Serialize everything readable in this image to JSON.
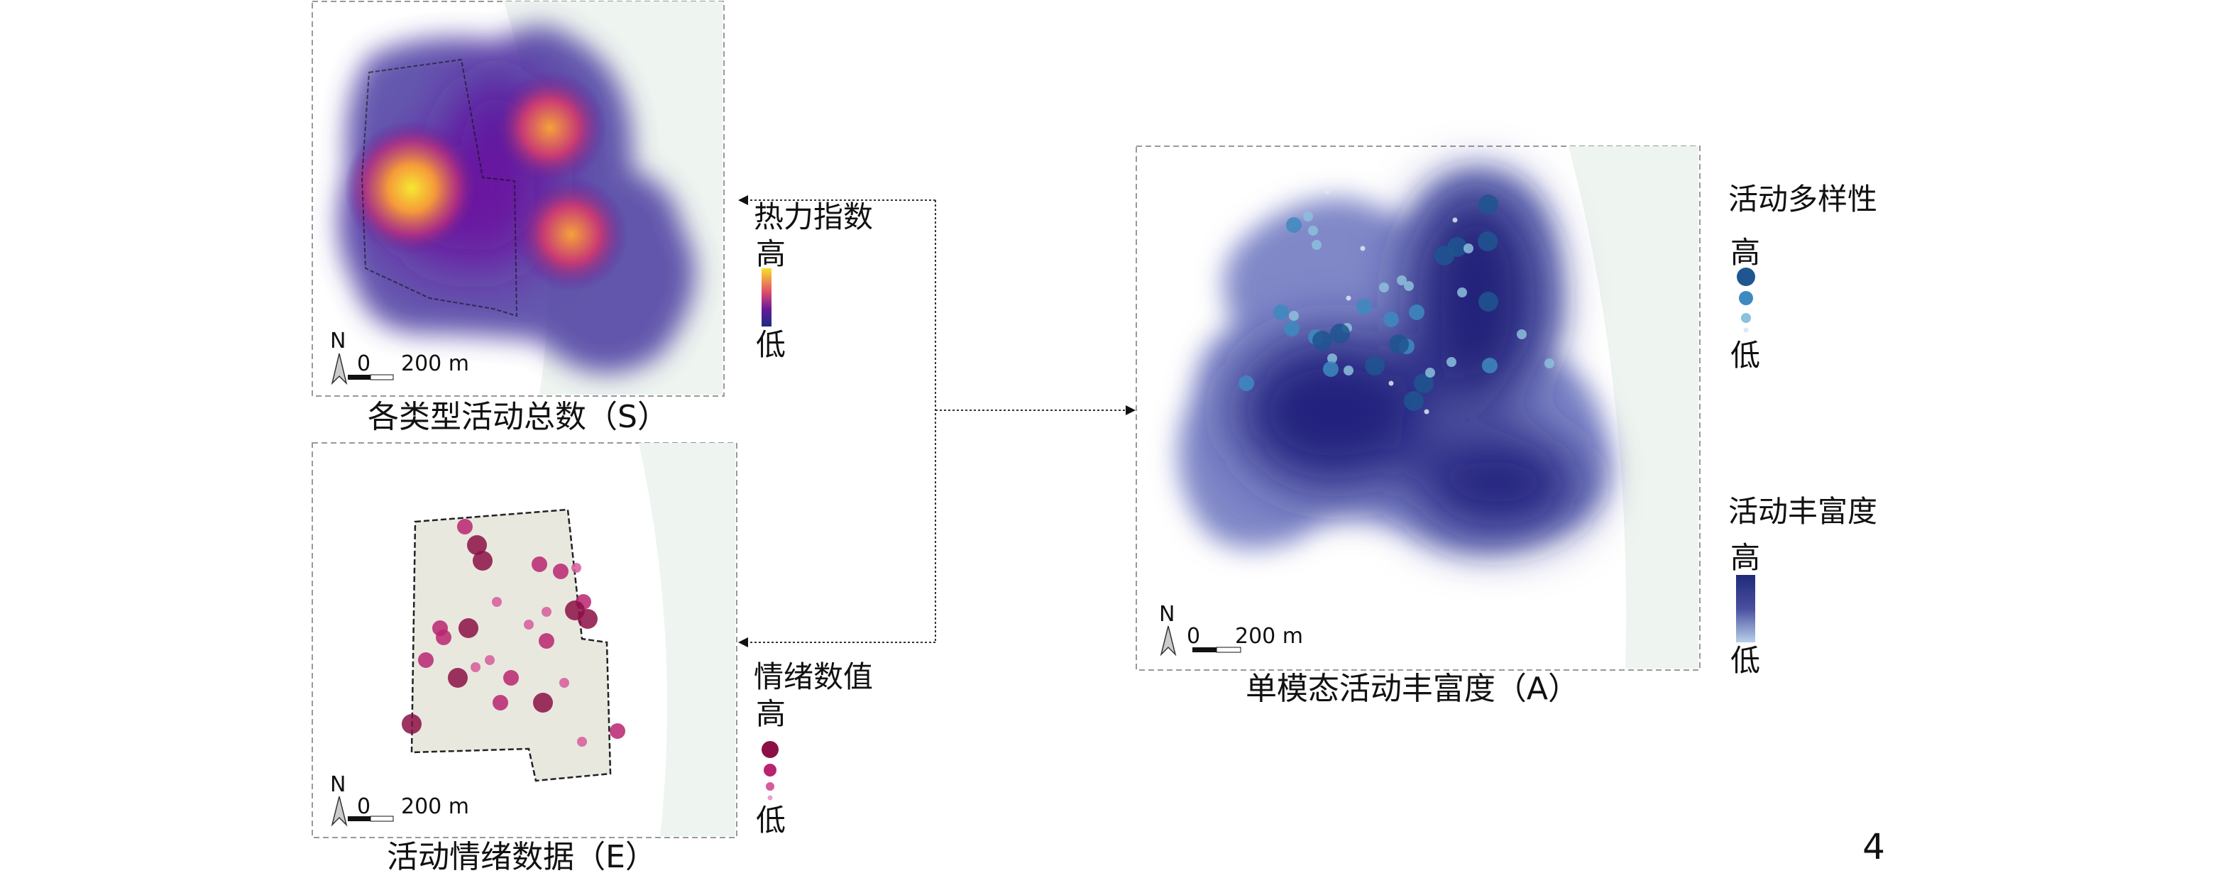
{
  "panels": {
    "s": {
      "caption": "各类型活动总数（S）",
      "legend_title": "热力指数",
      "legend_high": "高",
      "legend_low": "低",
      "colormap": [
        "#0d0887",
        "#7e03a8",
        "#cc4778",
        "#f89540",
        "#f0f921"
      ]
    },
    "e": {
      "caption": "活动情绪数据（E）",
      "legend_title": "情绪数值",
      "legend_high": "高",
      "legend_low": "低",
      "dot_color": "#a0135a"
    },
    "a": {
      "caption": "单模态活动丰富度（A）",
      "legend1_title": "活动多样性",
      "legend1_high": "高",
      "legend1_low": "低",
      "legend2_title": "活动丰富度",
      "legend2_high": "高",
      "legend2_low": "低",
      "density_color": "#1f2a7a",
      "dot_color": "#2f7fb8"
    }
  },
  "scalebar": {
    "north": "N",
    "zero": "0",
    "distance": "200 m"
  },
  "page_number": "4"
}
